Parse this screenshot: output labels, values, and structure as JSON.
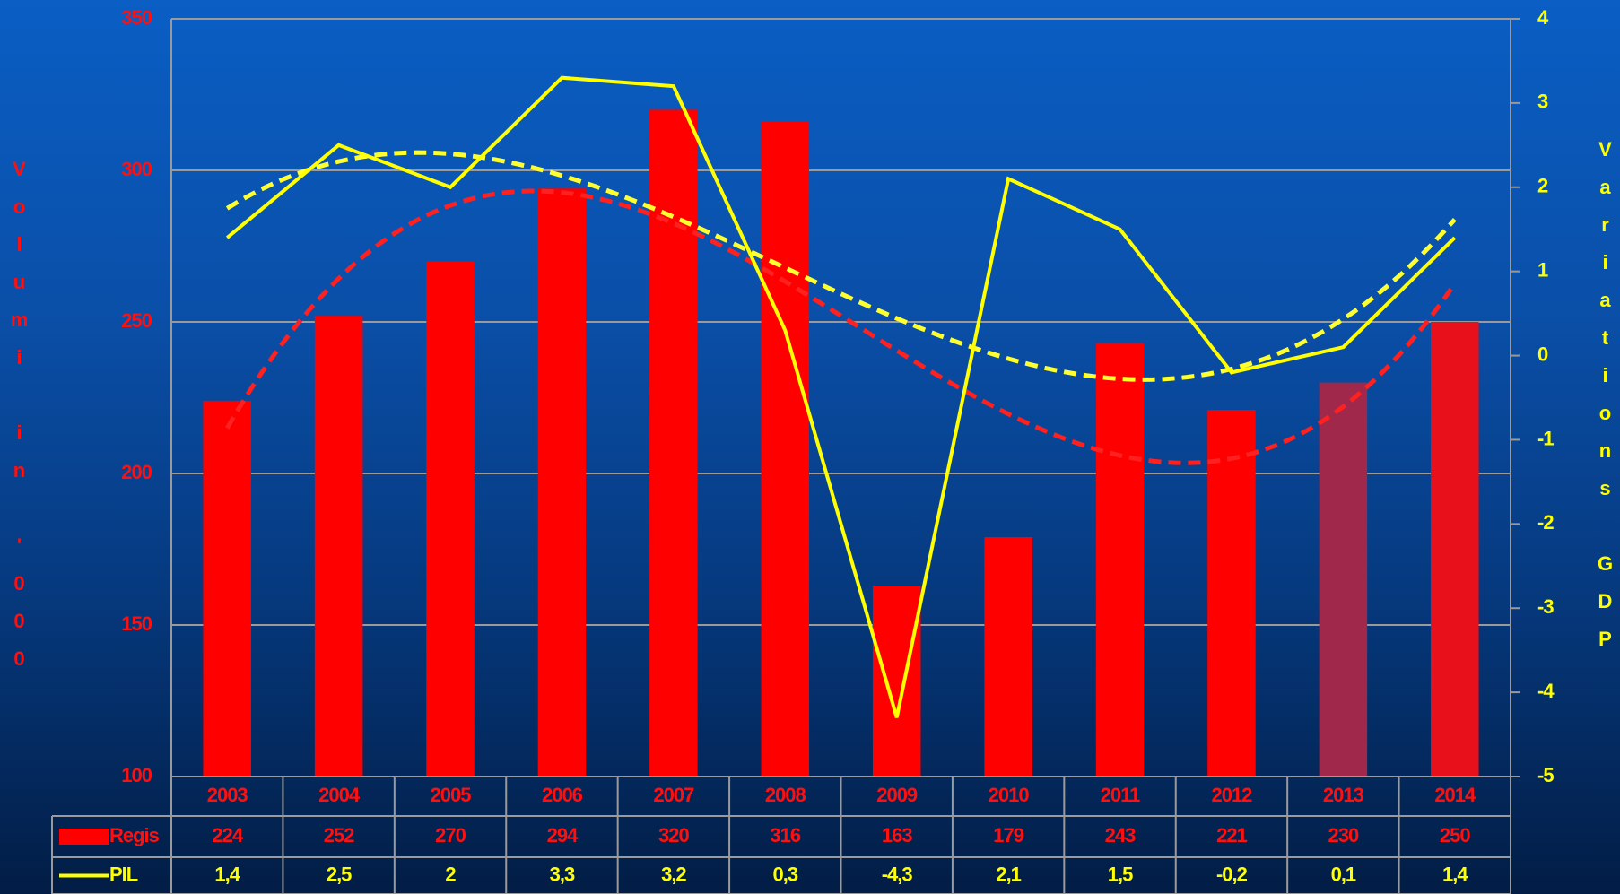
{
  "chart_data": {
    "type": "bar",
    "categories": [
      "2003",
      "2004",
      "2005",
      "2006",
      "2007",
      "2008",
      "2009",
      "2010",
      "2011",
      "2012",
      "2013",
      "2014"
    ],
    "series": [
      {
        "name": "Regis",
        "type": "bar",
        "color": "#ff0000",
        "colors": [
          "#ff0000",
          "#ff0000",
          "#ff0000",
          "#ff0000",
          "#ff0000",
          "#ff0000",
          "#ff0000",
          "#ff0000",
          "#ff0000",
          "#ff0000",
          "#a0284a",
          "#e8101a"
        ],
        "values": [
          224,
          252,
          270,
          294,
          320,
          316,
          163,
          179,
          243,
          221,
          230,
          250
        ],
        "trend_color": "#ff2020"
      },
      {
        "name": "PIL",
        "type": "line",
        "axis": "y2",
        "color": "#ffff00",
        "values": [
          1.4,
          2.5,
          2,
          3.3,
          3.2,
          0.3,
          -4.3,
          2.1,
          1.5,
          -0.2,
          0.1,
          1.4
        ],
        "value_labels": [
          "1,4",
          "2,5",
          "2",
          "3,3",
          "3,2",
          "0,3",
          "-4,3",
          "2,1",
          "1,5",
          "-0,2",
          "0,1",
          "1,4"
        ],
        "trend_color": "#ffff30"
      }
    ],
    "ylabel": "Volumi in '000",
    "y2label": "Variations GDP",
    "ylim": [
      100,
      350
    ],
    "yticks": [
      100,
      150,
      200,
      250,
      300,
      350
    ],
    "y2lim": [
      -5,
      4
    ],
    "y2ticks": [
      -5,
      -4,
      -3,
      -2,
      -1,
      0,
      1,
      2,
      3,
      4
    ],
    "grid": true,
    "trendline": true
  }
}
